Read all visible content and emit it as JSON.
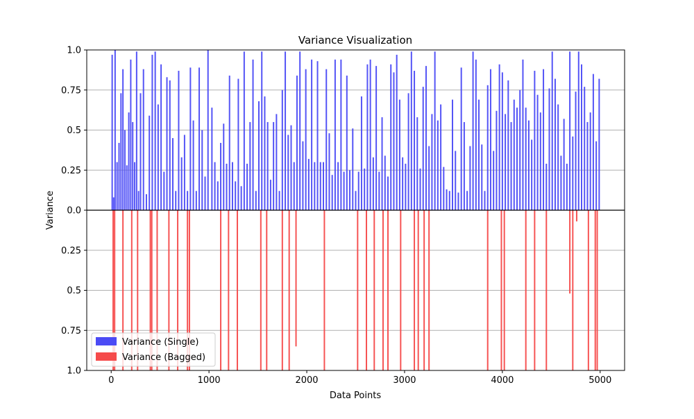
{
  "chart_data": {
    "type": "bar",
    "title": "Variance Visualization",
    "xlabel": "Data Points",
    "ylabel": "Variance",
    "xlim": [
      -250,
      5250
    ],
    "ylim": [
      -1.0,
      1.0
    ],
    "x_ticks": [
      0,
      1000,
      2000,
      3000,
      4000,
      5000
    ],
    "x_tick_labels": [
      "0",
      "1000",
      "2000",
      "3000",
      "4000",
      "5000"
    ],
    "y_ticks": [
      1.0,
      0.75,
      0.5,
      0.25,
      0.0,
      -0.25,
      -0.5,
      -0.75,
      -1.0
    ],
    "y_tick_labels": [
      "1.0",
      "0.75",
      "0.5",
      "0.25",
      "0.0",
      "0.25",
      "0.5",
      "0.75",
      "1.0"
    ],
    "grid": "horizontal",
    "legend_position": "lower-left",
    "colors": {
      "single": "#4b4bf5",
      "bagged": "#f54b4b",
      "zero_line": "#000000",
      "grid": "#b0b0b0"
    },
    "series": [
      {
        "name": "Variance (Single)",
        "direction": "up",
        "x": [
          10,
          25,
          40,
          60,
          80,
          100,
          120,
          140,
          160,
          180,
          200,
          220,
          240,
          260,
          280,
          300,
          330,
          360,
          390,
          420,
          450,
          480,
          510,
          540,
          570,
          600,
          630,
          660,
          690,
          720,
          750,
          780,
          810,
          840,
          870,
          900,
          930,
          960,
          990,
          1030,
          1060,
          1090,
          1120,
          1150,
          1180,
          1210,
          1240,
          1270,
          1300,
          1330,
          1360,
          1390,
          1420,
          1450,
          1480,
          1510,
          1540,
          1570,
          1600,
          1630,
          1660,
          1690,
          1720,
          1750,
          1780,
          1810,
          1840,
          1870,
          1900,
          1930,
          1960,
          1990,
          2020,
          2050,
          2080,
          2110,
          2140,
          2170,
          2200,
          2230,
          2260,
          2290,
          2320,
          2350,
          2380,
          2410,
          2440,
          2470,
          2500,
          2530,
          2560,
          2590,
          2620,
          2650,
          2680,
          2710,
          2740,
          2770,
          2800,
          2830,
          2860,
          2890,
          2920,
          2950,
          2980,
          3010,
          3040,
          3070,
          3100,
          3130,
          3160,
          3190,
          3220,
          3250,
          3280,
          3310,
          3340,
          3370,
          3400,
          3430,
          3460,
          3490,
          3520,
          3550,
          3580,
          3610,
          3640,
          3670,
          3700,
          3730,
          3760,
          3790,
          3820,
          3850,
          3880,
          3910,
          3940,
          3970,
          4000,
          4030,
          4060,
          4090,
          4120,
          4150,
          4180,
          4210,
          4240,
          4270,
          4300,
          4330,
          4360,
          4390,
          4420,
          4450,
          4480,
          4510,
          4540,
          4570,
          4600,
          4630,
          4660,
          4690,
          4720,
          4750,
          4780,
          4810,
          4840,
          4870,
          4900,
          4930,
          4960,
          4990
        ],
        "values": [
          0.97,
          0.08,
          1.0,
          0.3,
          0.42,
          0.73,
          0.88,
          0.5,
          0.28,
          0.61,
          0.94,
          0.55,
          0.3,
          0.99,
          0.12,
          0.73,
          0.88,
          0.1,
          0.59,
          0.97,
          0.99,
          0.66,
          0.91,
          0.24,
          0.83,
          0.81,
          0.45,
          0.12,
          0.87,
          0.33,
          0.47,
          0.12,
          0.89,
          0.56,
          0.12,
          0.89,
          0.5,
          0.21,
          1.0,
          0.64,
          0.3,
          0.18,
          0.42,
          0.54,
          0.29,
          0.84,
          0.3,
          0.18,
          0.82,
          0.15,
          0.99,
          0.29,
          0.55,
          0.94,
          0.12,
          0.68,
          0.99,
          0.71,
          0.55,
          0.19,
          0.55,
          0.6,
          0.12,
          0.75,
          0.99,
          0.47,
          0.53,
          0.3,
          0.84,
          0.99,
          0.43,
          0.88,
          0.32,
          0.94,
          0.3,
          0.93,
          0.3,
          0.3,
          0.88,
          0.48,
          0.22,
          0.94,
          0.3,
          0.94,
          0.24,
          0.84,
          0.25,
          0.51,
          0.12,
          0.24,
          0.71,
          0.26,
          0.91,
          0.94,
          0.33,
          0.9,
          0.24,
          0.58,
          0.34,
          0.21,
          0.91,
          0.86,
          0.97,
          0.69,
          0.33,
          0.29,
          0.73,
          0.99,
          0.87,
          0.58,
          0.26,
          0.77,
          0.9,
          0.4,
          0.6,
          0.99,
          0.56,
          0.66,
          0.27,
          0.13,
          0.12,
          0.69,
          0.37,
          0.11,
          0.89,
          0.55,
          0.12,
          0.4,
          0.99,
          0.94,
          0.69,
          0.41,
          0.12,
          0.78,
          0.88,
          0.37,
          0.62,
          0.91,
          0.86,
          0.6,
          0.81,
          0.55,
          0.69,
          0.64,
          0.75,
          0.94,
          0.64,
          0.56,
          0.44,
          0.87,
          0.72,
          0.61,
          0.88,
          0.29,
          0.76,
          0.99,
          0.82,
          0.66,
          0.34,
          0.57,
          0.29,
          0.99,
          0.46,
          0.74,
          0.99,
          0.91,
          0.77,
          0.55,
          0.61,
          0.85,
          0.43,
          0.82
        ]
      },
      {
        "name": "Variance (Bagged)",
        "direction": "down",
        "x": [
          20,
          35,
          120,
          210,
          270,
          400,
          415,
          470,
          590,
          680,
          780,
          800,
          1120,
          1200,
          1290,
          1530,
          1590,
          1750,
          1820,
          1890,
          2180,
          2520,
          2610,
          2690,
          2780,
          2830,
          2960,
          3100,
          3140,
          3200,
          3250,
          3850,
          3990,
          4020,
          4240,
          4330,
          4450,
          4690,
          4720,
          4760,
          4880,
          4950,
          4970
        ],
        "values": [
          1.0,
          1.0,
          1.0,
          1.0,
          1.0,
          1.0,
          1.0,
          1.0,
          1.0,
          1.0,
          1.0,
          1.0,
          1.0,
          1.0,
          1.0,
          1.0,
          1.0,
          1.0,
          1.0,
          0.85,
          1.0,
          1.0,
          1.0,
          1.0,
          1.0,
          1.0,
          1.0,
          1.0,
          1.0,
          1.0,
          1.0,
          1.0,
          1.0,
          1.0,
          1.0,
          1.0,
          1.0,
          0.52,
          1.0,
          0.07,
          1.0,
          1.0,
          1.0
        ]
      }
    ]
  }
}
